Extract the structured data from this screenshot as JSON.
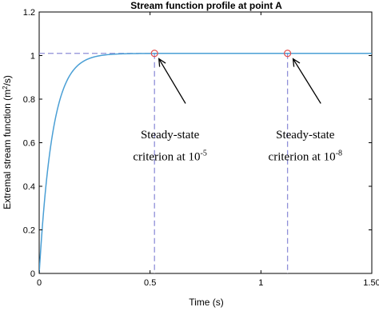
{
  "chart_data": {
    "type": "line",
    "title": "Stream function profile at point A",
    "xlabel": "Time (s)",
    "ylabel": {
      "text": "Extremal stream function (m",
      "superscript": "2",
      "suffix": "/s)"
    },
    "xlim": [
      0,
      1.5
    ],
    "ylim": [
      0,
      1.2
    ],
    "x_ticks": [
      0,
      0.5,
      1,
      1.5
    ],
    "x_tick_labels": [
      "0",
      "0.5",
      "1",
      "1.50"
    ],
    "y_ticks": [
      0,
      0.2,
      0.4,
      0.6,
      0.8,
      1,
      1.2
    ],
    "y_tick_labels": [
      "0",
      "0.2",
      "0.4",
      "0.6",
      "0.8",
      "1",
      "1.2"
    ],
    "grid": false,
    "series": [
      {
        "color": "#4a9fd5",
        "asymptote": 1.01,
        "x": [
          0,
          0.01,
          0.02,
          0.03,
          0.04,
          0.05,
          0.06,
          0.08,
          0.1,
          0.12,
          0.15,
          0.18,
          0.2,
          0.25,
          0.3,
          0.35,
          0.4,
          0.45,
          0.5,
          0.52,
          0.6,
          0.7,
          0.8,
          0.9,
          1.0,
          1.12,
          1.2,
          1.35,
          1.5
        ],
        "y": [
          0,
          0.148,
          0.274,
          0.382,
          0.474,
          0.553,
          0.62,
          0.728,
          0.807,
          0.864,
          0.922,
          0.955,
          0.968,
          0.989,
          0.999,
          1.004,
          1.007,
          1.008,
          1.009,
          1.009,
          1.01,
          1.01,
          1.01,
          1.01,
          1.01,
          1.01,
          1.01,
          1.01,
          1.01
        ]
      }
    ],
    "reference_lines": {
      "color": "#8f8fd8",
      "horizontal_y": 1.01,
      "vertical_x": [
        0.52,
        1.12
      ]
    },
    "markers": [
      {
        "x": 0.52,
        "y": 1.01,
        "color": "#e05050"
      },
      {
        "x": 1.12,
        "y": 1.01,
        "color": "#e05050"
      }
    ],
    "annotations": [
      {
        "line1": "Steady-state",
        "line2": "criterion at 10",
        "exponent": "-5",
        "arrow_from": [
          0.66,
          0.78
        ],
        "arrow_to": [
          0.54,
          0.985
        ],
        "text_x": 0.59,
        "line1_y": 0.62,
        "line2_y": 0.52
      },
      {
        "line1": "Steady-state",
        "line2": "criterion at 10",
        "exponent": "-8",
        "arrow_from": [
          1.27,
          0.78
        ],
        "arrow_to": [
          1.145,
          0.985
        ],
        "text_x": 1.2,
        "line1_y": 0.62,
        "line2_y": 0.52
      }
    ]
  }
}
